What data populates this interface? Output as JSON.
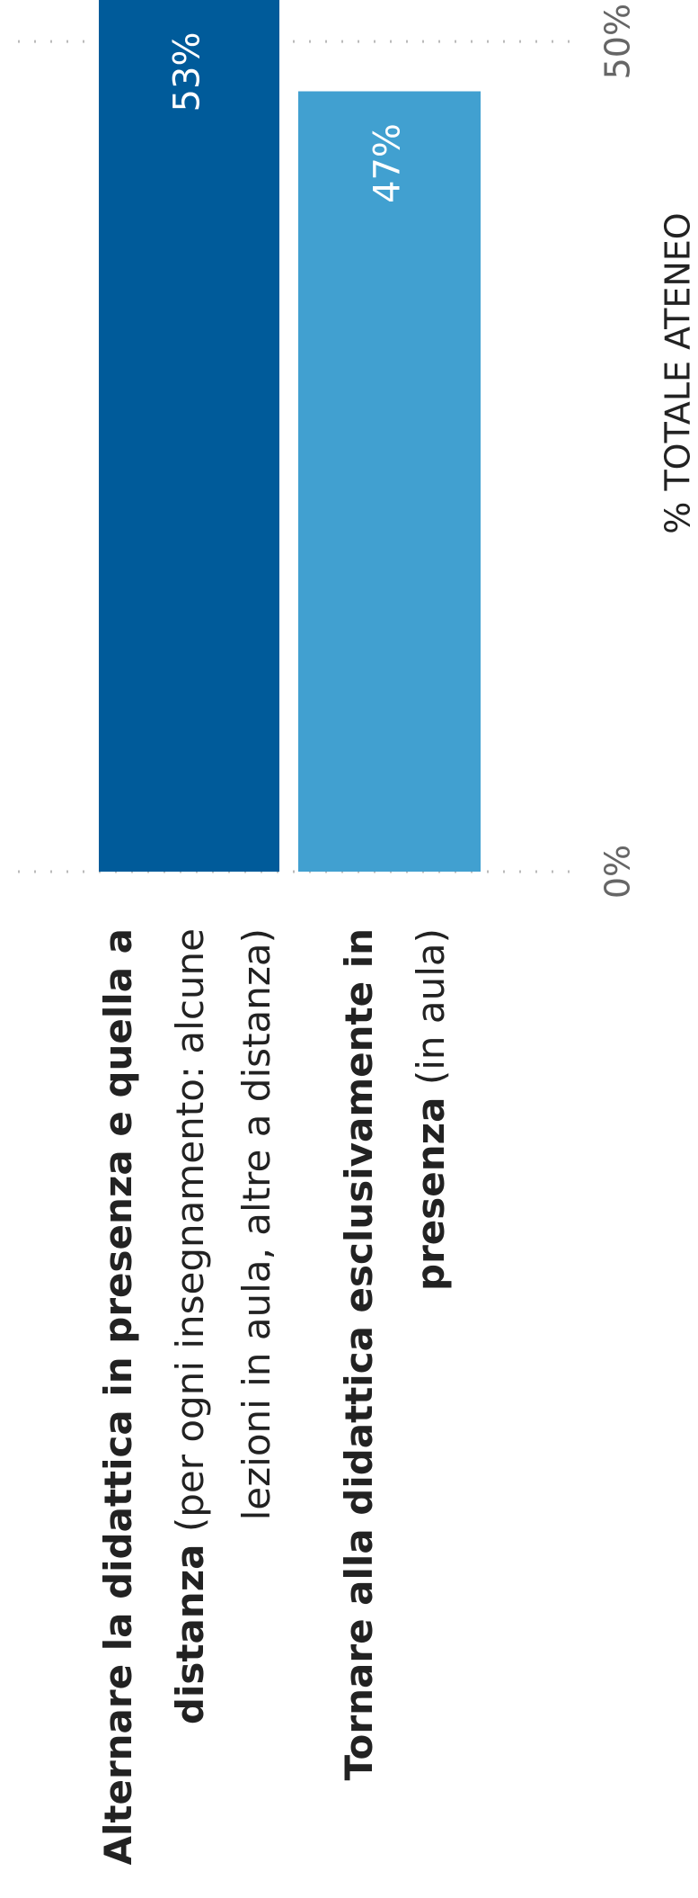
{
  "chart_data": {
    "type": "hbar",
    "categories": [
      [
        [
          {
            "text": "Alternare la didattica in presenza e quella a",
            "bold": true
          }
        ],
        [
          {
            "text": "distanza",
            "bold": true
          },
          {
            "text": " (per ogni insegnamento: alcune",
            "bold": false
          }
        ],
        [
          {
            "text": "lezioni in aula, altre a distanza)",
            "bold": false
          }
        ]
      ],
      [
        [
          {
            "text": "Tornare alla didattica esclusivamente in",
            "bold": true
          }
        ],
        [
          {
            "text": "presenza",
            "bold": true
          },
          {
            "text": " (in aula)",
            "bold": false
          }
        ]
      ]
    ],
    "values": [
      53,
      47
    ],
    "value_labels": [
      "53%",
      "47%"
    ],
    "colors": [
      "#005b9a",
      "#41a0d0"
    ],
    "xlim": [
      0,
      52.5
    ],
    "xticks": [
      {
        "value": 0,
        "label": "0%"
      },
      {
        "value": 50,
        "label": "50%"
      }
    ],
    "xlabel": "% TOTALE ATENEO",
    "grid": true
  }
}
